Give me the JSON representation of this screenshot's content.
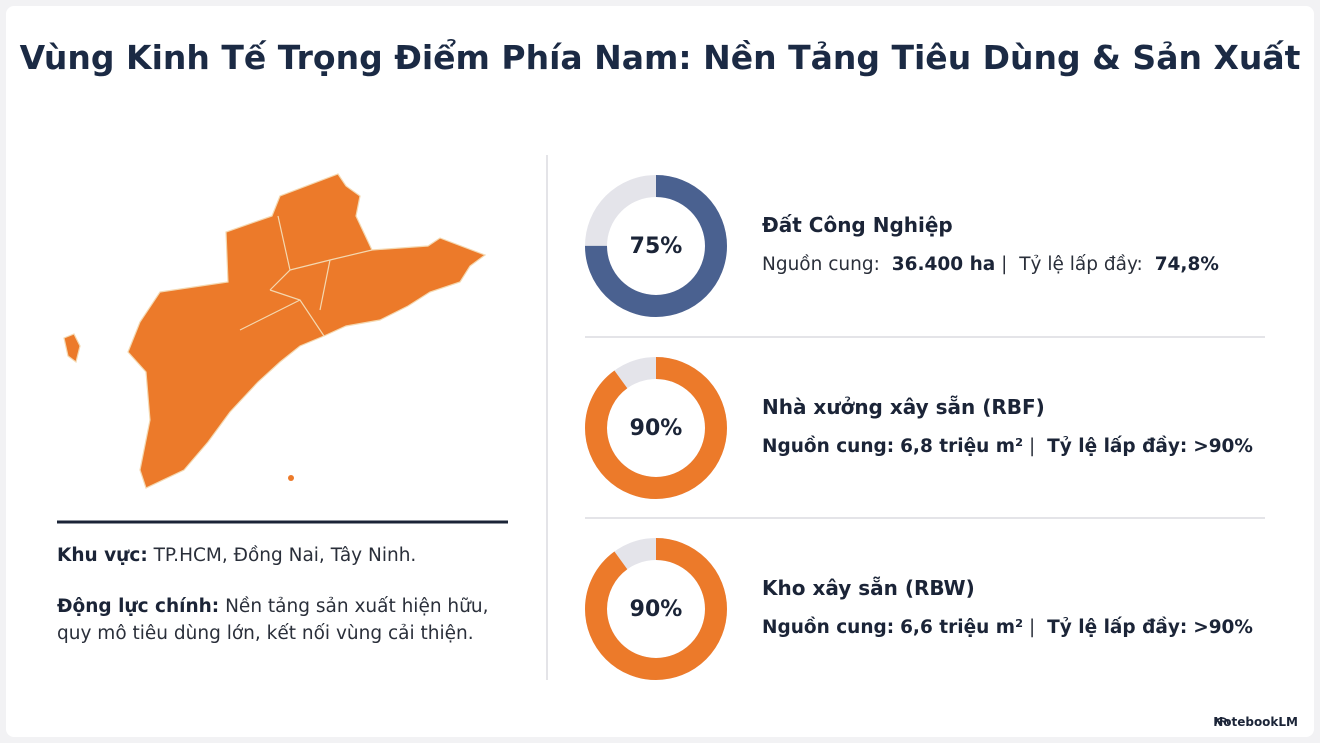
{
  "title": "Vùng Kinh Tế Trọng Điểm Phía Nam: Nền Tảng Tiêu Dùng & Sản Xuất",
  "left": {
    "lines": [
      [
        {
          "text": "Khu vực:",
          "bold": true
        },
        {
          "text": "TP.HCM, Đồng Nai, Tây Ninh."
        }
      ],
      [
        {
          "text": "Động lực chính:",
          "bold": true
        },
        {
          "text": "Nền tảng sản xuất hiện hữu, quy mô tiêu dùng lớn, kết nối vùng cải thiện."
        }
      ]
    ]
  },
  "chart_data": [
    {
      "type": "donut",
      "title": "Đất Công Nghiệp",
      "values": [
        75
      ],
      "value_labels": [
        "75%"
      ],
      "color": "#4a6190",
      "track_color": "#e4e4ea",
      "details": [
        {
          "text": "Nguồn cung:"
        },
        {
          "text": "36.400 ha",
          "bold": true
        },
        {
          "text": "|"
        },
        {
          "text": "Tỷ lệ lấp đầy:"
        },
        {
          "text": "74,8%",
          "bold": true
        }
      ]
    },
    {
      "type": "donut",
      "title": "Nhà xưởng xây sẵn (RBF)",
      "values": [
        90
      ],
      "value_labels": [
        "90%"
      ],
      "color": "#ec7a2a",
      "track_color": "#e4e4ea",
      "details": [
        {
          "text": "Nguồn cung:",
          "bold": true
        },
        {
          "text": "6,8 triệu m²",
          "bold": true
        },
        {
          "text": "|"
        },
        {
          "text": "Tỷ lệ lấp đầy:",
          "bold": true
        },
        {
          "text": ">90%",
          "bold": true
        }
      ]
    },
    {
      "type": "donut",
      "title": "Kho xây sẵn (RBW)",
      "values": [
        90
      ],
      "value_labels": [
        "90%"
      ],
      "color": "#ec7a2a",
      "track_color": "#e4e4ea",
      "details": [
        {
          "text": "Nguồn cung:",
          "bold": true
        },
        {
          "text": "6,6 triệu m²",
          "bold": true
        },
        {
          "text": "|"
        },
        {
          "text": "Tỷ lệ lấp đầy:",
          "bold": true
        },
        {
          "text": ">90%",
          "bold": true
        }
      ]
    }
  ],
  "footer": "NotebookLM"
}
